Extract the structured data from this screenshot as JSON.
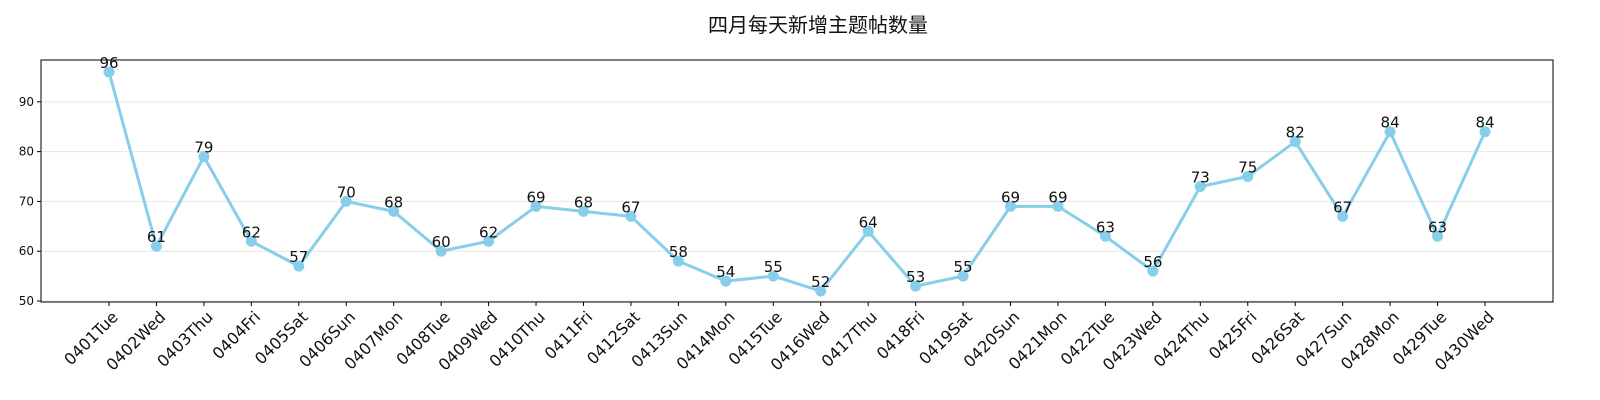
{
  "chart_data": {
    "type": "line",
    "title": "四月每天新增主题帖数量",
    "xlabel": "",
    "ylabel": "",
    "categories": [
      "0401Tue",
      "0402Wed",
      "0403Thu",
      "0404Fri",
      "0405Sat",
      "0406Sun",
      "0407Mon",
      "0408Tue",
      "0409Wed",
      "0410Thu",
      "0411Fri",
      "0412Sat",
      "0413Sun",
      "0414Mon",
      "0415Tue",
      "0416Wed",
      "0417Thu",
      "0418Fri",
      "0419Sat",
      "0420Sun",
      "0421Mon",
      "0422Tue",
      "0423Wed",
      "0424Thu",
      "0425Fri",
      "0426Sat",
      "0427Sun",
      "0428Mon",
      "0429Tue",
      "0430Wed"
    ],
    "series": [
      {
        "values": [
          96,
          61,
          79,
          62,
          57,
          70,
          68,
          60,
          62,
          69,
          68,
          67,
          58,
          54,
          55,
          52,
          64,
          53,
          55,
          69,
          69,
          63,
          56,
          73,
          75,
          82,
          67,
          84,
          63,
          84
        ]
      }
    ],
    "yticks": [
      50,
      60,
      70,
      80,
      90
    ],
    "ylim": [
      49.8,
      98.4
    ],
    "grid": "horizontal",
    "line_color": "#87ceeb",
    "grid_color": "#e6e6e6"
  }
}
